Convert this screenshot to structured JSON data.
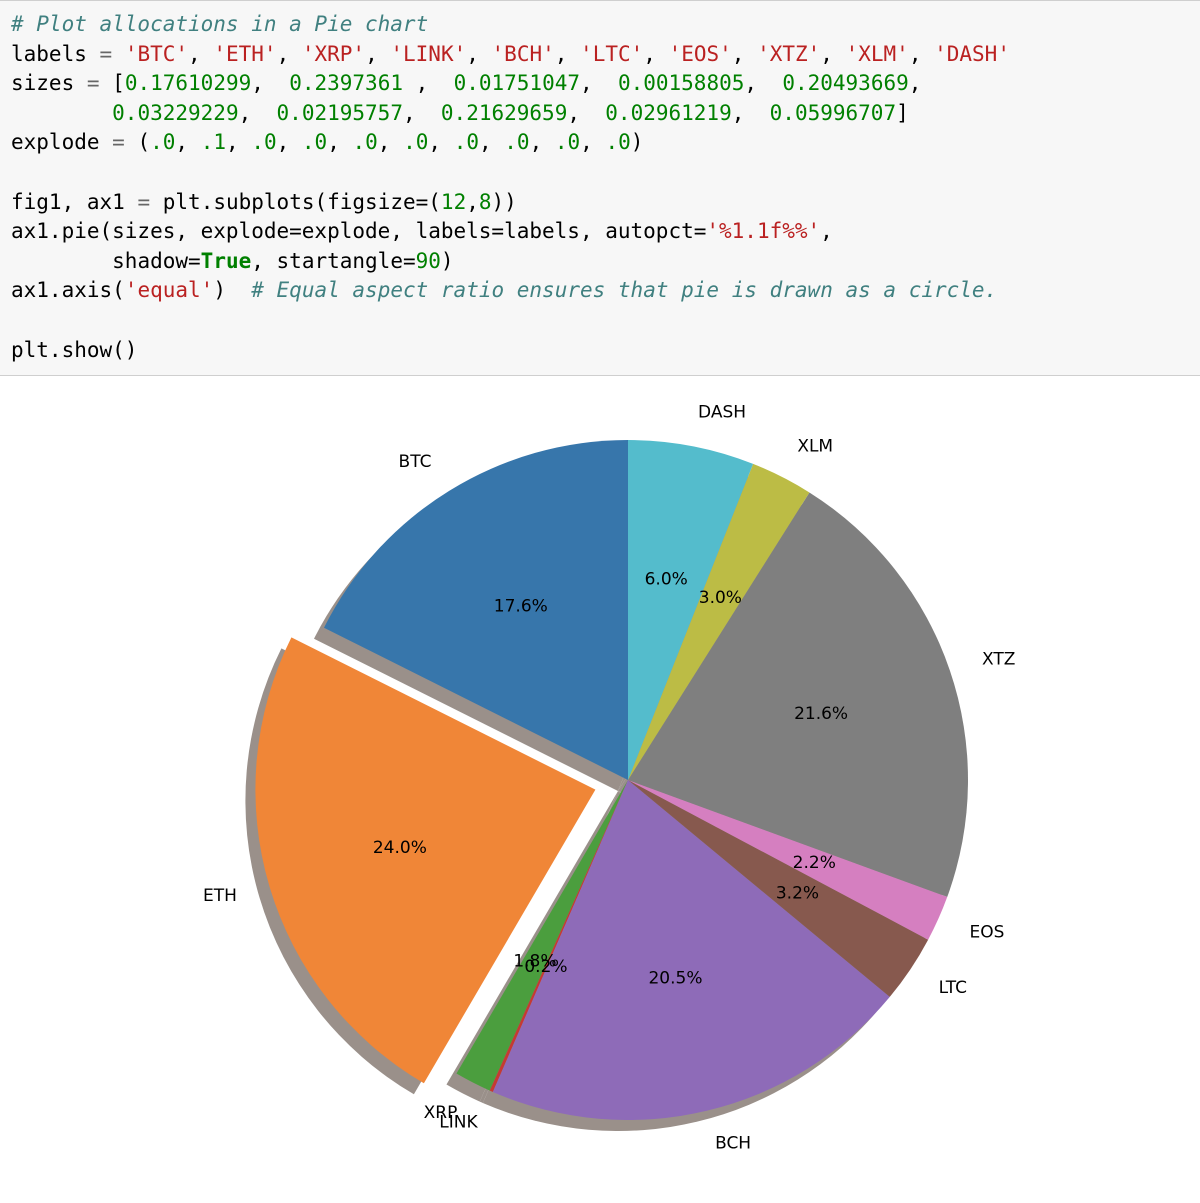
{
  "code": {
    "comment1": "# Plot allocations in a Pie chart",
    "labels_var": "labels",
    "eq": "=",
    "labels_items": [
      "'BTC'",
      "'ETH'",
      "'XRP'",
      "'LINK'",
      "'BCH'",
      "'LTC'",
      "'EOS'",
      "'XTZ'",
      "'XLM'",
      "'DASH'"
    ],
    "sizes_var": "sizes",
    "sizes_line1": [
      "0.17610299",
      "0.2397361 ",
      "0.01751047",
      "0.00158805",
      "0.20493669"
    ],
    "sizes_line2": [
      "0.03229229",
      "0.02195757",
      "0.21629659",
      "0.02961219",
      "0.05996707"
    ],
    "explode_var": "explode",
    "explode_items": [
      ".0",
      ".1",
      ".0",
      ".0",
      ".0",
      ".0",
      ".0",
      ".0",
      ".0",
      ".0"
    ],
    "fig_line_a": "fig1, ax1",
    "fig_line_b": "plt.subplots(figsize=(",
    "figsize_w": "12",
    "figsize_h": "8",
    "pie_line_a": "ax1.pie(sizes, explode=explode, labels=labels, autopct=",
    "autopct": "'%1.1f%%'",
    "shadow_a": "shadow=",
    "shadow_kw": "True",
    "shadow_b": ", startangle=",
    "startangle": "90",
    "axis_a": "ax1.axis(",
    "axis_arg": "'equal'",
    "axis_b": ")",
    "comment2": "# Equal aspect ratio ensures that pie is drawn as a circle.",
    "show": "plt.show()"
  },
  "chart_data": {
    "type": "pie",
    "startangle": 90,
    "shadow": true,
    "labels": [
      "BTC",
      "ETH",
      "XRP",
      "LINK",
      "BCH",
      "LTC",
      "EOS",
      "XTZ",
      "XLM",
      "DASH"
    ],
    "values": [
      0.17610299,
      0.2397361,
      0.01751047,
      0.00158805,
      0.20493669,
      0.03229229,
      0.02195757,
      0.21629659,
      0.02961219,
      0.05996707
    ],
    "explode": [
      0,
      0.1,
      0,
      0,
      0,
      0,
      0,
      0,
      0,
      0
    ],
    "pct_labels": [
      "17.6%",
      "24.0%",
      "1.8%",
      "0.2%",
      "20.5%",
      "3.2%",
      "2.2%",
      "21.6%",
      "3.0%",
      "6.0%"
    ],
    "colors": [
      "#3776ab",
      "#f08637",
      "#4b9e3e",
      "#c53a33",
      "#8e6bb8",
      "#87594e",
      "#d57fc0",
      "#7f7f7f",
      "#bcbc45",
      "#54bccc"
    ]
  }
}
